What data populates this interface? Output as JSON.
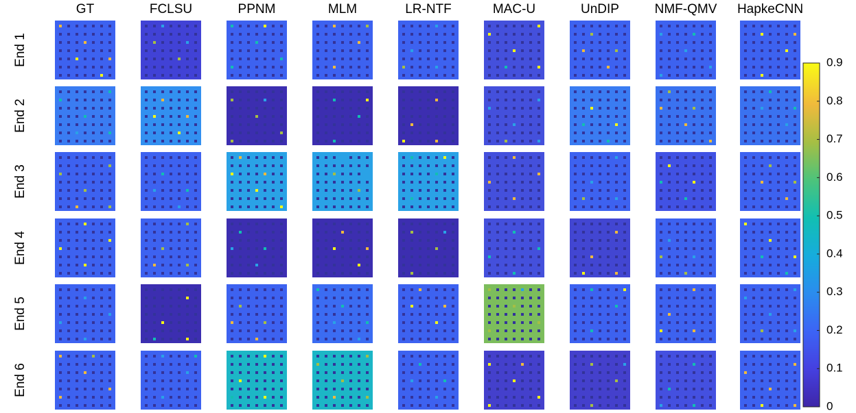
{
  "columns": [
    "GT",
    "FCLSU",
    "PPNM",
    "MLM",
    "LR-NTF",
    "MAC-U",
    "UnDIP",
    "NMF-QMV",
    "HapkeCNN"
  ],
  "rows": [
    "End 1",
    "End 2",
    "End 3",
    "End 4",
    "End 5",
    "End 6"
  ],
  "colorbar": {
    "lim": [
      0,
      0.9
    ],
    "ticks": [
      0,
      0.1,
      0.2,
      0.3,
      0.4,
      0.5,
      0.6,
      0.7,
      0.8,
      0.9
    ]
  }
}
